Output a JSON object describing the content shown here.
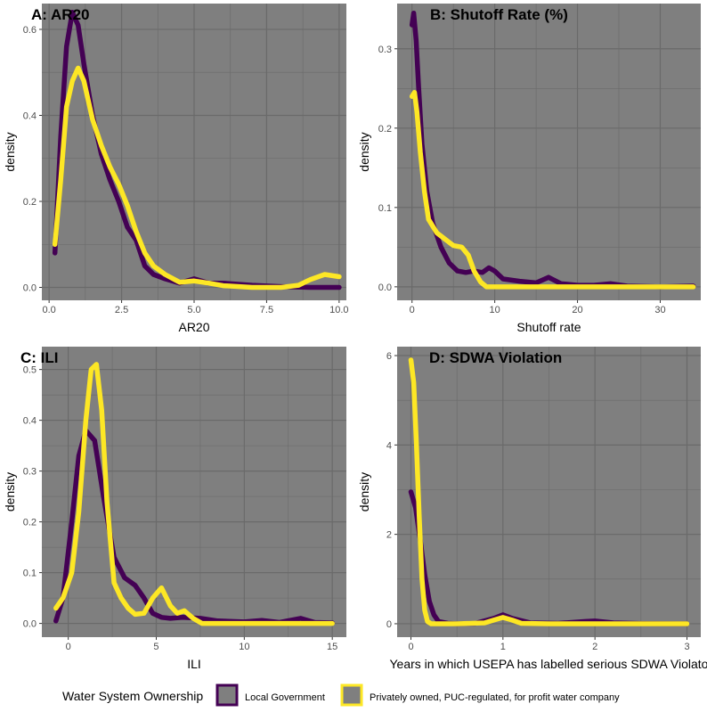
{
  "colors": {
    "panel_bg": "#7f7f7f",
    "grid": "#6a6a6a",
    "local_government": "#440154",
    "private_company": "#fde725"
  },
  "legend": {
    "title": "Water System Ownership",
    "items": [
      {
        "label": "Local Government",
        "color": "#440154"
      },
      {
        "label": "Privately owned, PUC-regulated, for profit water company",
        "color": "#fde725"
      }
    ]
  },
  "chart_data": [
    {
      "type": "line",
      "title": "A: AR20",
      "xlabel": "AR20",
      "ylabel": "density",
      "xlim": [
        -0.25,
        10.25
      ],
      "ylim": [
        -0.03,
        0.66
      ],
      "xticks": [
        0.0,
        2.5,
        5.0,
        7.5,
        10.0
      ],
      "xtick_labels": [
        "0.0",
        "2.5",
        "5.0",
        "7.5",
        "10.0"
      ],
      "yticks": [
        0.0,
        0.2,
        0.4,
        0.6
      ],
      "ytick_labels": [
        "0.0",
        "0.2",
        "0.4",
        "0.6"
      ],
      "grid": true,
      "series": [
        {
          "name": "Local Government",
          "color": "#440154",
          "x": [
            0.2,
            0.4,
            0.6,
            0.8,
            1.0,
            1.2,
            1.5,
            1.8,
            2.1,
            2.4,
            2.7,
            3.0,
            3.3,
            3.6,
            4.0,
            4.5,
            5.0,
            5.5,
            6.0,
            7.0,
            8.0,
            9.0,
            10.0
          ],
          "y": [
            0.08,
            0.35,
            0.56,
            0.64,
            0.61,
            0.52,
            0.4,
            0.31,
            0.25,
            0.2,
            0.14,
            0.11,
            0.05,
            0.03,
            0.02,
            0.01,
            0.02,
            0.01,
            0.01,
            0.005,
            0.002,
            0.0,
            0.0
          ]
        },
        {
          "name": "Privately owned, PUC-regulated, for profit water company",
          "color": "#fde725",
          "x": [
            0.2,
            0.4,
            0.6,
            0.8,
            1.0,
            1.2,
            1.5,
            1.8,
            2.1,
            2.4,
            2.7,
            3.0,
            3.3,
            3.6,
            4.0,
            4.5,
            5.0,
            5.5,
            6.0,
            7.0,
            8.0,
            8.6,
            9.0,
            9.5,
            10.0
          ],
          "y": [
            0.1,
            0.25,
            0.42,
            0.48,
            0.51,
            0.48,
            0.39,
            0.33,
            0.28,
            0.24,
            0.19,
            0.13,
            0.08,
            0.05,
            0.03,
            0.012,
            0.015,
            0.01,
            0.004,
            0.0,
            0.0,
            0.005,
            0.018,
            0.03,
            0.025
          ]
        }
      ]
    },
    {
      "type": "line",
      "title": "B: Shutoff Rate (%)",
      "xlabel": "Shutoff rate",
      "ylabel": "density",
      "xlim": [
        -1.8,
        34.9
      ],
      "ylim": [
        -0.017,
        0.357
      ],
      "xticks": [
        0,
        10,
        20,
        30
      ],
      "xtick_labels": [
        "0",
        "10",
        "20",
        "30"
      ],
      "yticks": [
        0.0,
        0.1,
        0.2,
        0.3
      ],
      "ytick_labels": [
        "0.0",
        "0.1",
        "0.2",
        "0.3"
      ],
      "grid": true,
      "series": [
        {
          "name": "Local Government",
          "color": "#440154",
          "x": [
            0.0,
            0.2,
            0.5,
            0.8,
            1.2,
            1.8,
            2.5,
            3.5,
            4.5,
            5.5,
            6.5,
            7.5,
            8.5,
            9.3,
            10.0,
            11.0,
            13.0,
            15.0,
            16.5,
            18.0,
            20.0,
            22.0,
            24.0,
            26.0,
            30.0,
            34.0
          ],
          "y": [
            0.33,
            0.345,
            0.31,
            0.25,
            0.18,
            0.12,
            0.08,
            0.05,
            0.03,
            0.02,
            0.018,
            0.02,
            0.018,
            0.024,
            0.02,
            0.01,
            0.007,
            0.005,
            0.012,
            0.004,
            0.002,
            0.002,
            0.004,
            0.001,
            0.0,
            0.001
          ]
        },
        {
          "name": "Privately owned, PUC-regulated, for profit water company",
          "color": "#fde725",
          "x": [
            0.0,
            0.3,
            0.6,
            1.0,
            1.5,
            2.0,
            3.0,
            4.0,
            5.0,
            6.0,
            6.8,
            7.5,
            8.3,
            9.0,
            10.0,
            12.0,
            15.0,
            20.0,
            25.0,
            30.0,
            34.0
          ],
          "y": [
            0.24,
            0.245,
            0.22,
            0.17,
            0.12,
            0.085,
            0.068,
            0.06,
            0.052,
            0.05,
            0.04,
            0.02,
            0.006,
            0.0,
            0.0,
            0.0,
            0.0,
            0.0,
            0.0,
            0.0,
            0.0
          ]
        }
      ]
    },
    {
      "type": "line",
      "title": "C: ILI",
      "xlabel": "ILI",
      "ylabel": "density",
      "xlim": [
        -1.5,
        15.8
      ],
      "ylim": [
        -0.027,
        0.545
      ],
      "xticks": [
        0,
        5,
        10,
        15
      ],
      "xtick_labels": [
        "0",
        "5",
        "10",
        "15"
      ],
      "yticks": [
        0.0,
        0.1,
        0.2,
        0.3,
        0.4,
        0.5
      ],
      "ytick_labels": [
        "0.0",
        "0.1",
        "0.2",
        "0.3",
        "0.4",
        "0.5"
      ],
      "grid": true,
      "series": [
        {
          "name": "Local Government",
          "color": "#440154",
          "x": [
            -0.7,
            -0.3,
            0.2,
            0.6,
            1.0,
            1.5,
            2.0,
            2.6,
            3.2,
            3.8,
            4.3,
            4.8,
            5.3,
            5.8,
            6.5,
            7.5,
            8.5,
            10.0,
            11.0,
            12.0,
            13.2,
            14.0,
            15.0
          ],
          "y": [
            0.005,
            0.05,
            0.2,
            0.33,
            0.38,
            0.36,
            0.25,
            0.13,
            0.09,
            0.075,
            0.05,
            0.02,
            0.012,
            0.01,
            0.012,
            0.01,
            0.005,
            0.003,
            0.006,
            0.002,
            0.01,
            0.002,
            0.001
          ]
        },
        {
          "name": "Privately owned, PUC-regulated, for profit water company",
          "color": "#fde725",
          "x": [
            -0.7,
            -0.3,
            0.2,
            0.6,
            1.0,
            1.3,
            1.6,
            1.9,
            2.2,
            2.6,
            3.0,
            3.4,
            3.8,
            4.3,
            4.8,
            5.3,
            5.8,
            6.2,
            6.6,
            7.1,
            7.6,
            8.5,
            10.0,
            12.0,
            15.0
          ],
          "y": [
            0.03,
            0.05,
            0.1,
            0.22,
            0.4,
            0.5,
            0.51,
            0.42,
            0.24,
            0.08,
            0.05,
            0.03,
            0.018,
            0.02,
            0.05,
            0.07,
            0.035,
            0.02,
            0.025,
            0.01,
            0.0,
            0.0,
            0.0,
            0.0,
            0.0
          ]
        }
      ]
    },
    {
      "type": "line",
      "title": "D: SDWA Violation",
      "xlabel": "Years in which USEPA has labelled serious SDWA Violato",
      "ylabel": "density",
      "xlim": [
        -0.15,
        3.15
      ],
      "ylim": [
        -0.3,
        6.2
      ],
      "xticks": [
        0,
        1,
        2,
        3
      ],
      "xtick_labels": [
        "0",
        "1",
        "2",
        "3"
      ],
      "yticks": [
        0,
        2,
        4,
        6
      ],
      "ytick_labels": [
        "0",
        "2",
        "4",
        "6"
      ],
      "grid": true,
      "series": [
        {
          "name": "Local Government",
          "color": "#440154",
          "x": [
            0.0,
            0.05,
            0.1,
            0.15,
            0.2,
            0.25,
            0.3,
            0.4,
            0.5,
            0.7,
            0.9,
            1.0,
            1.1,
            1.3,
            1.6,
            1.9,
            2.0,
            2.2,
            2.5,
            3.0
          ],
          "y": [
            2.95,
            2.6,
            1.9,
            1.1,
            0.5,
            0.2,
            0.05,
            0.01,
            0.0,
            0.01,
            0.12,
            0.2,
            0.12,
            0.02,
            0.01,
            0.05,
            0.06,
            0.02,
            0.005,
            0.0
          ]
        },
        {
          "name": "Privately owned, PUC-regulated, for profit water company",
          "color": "#fde725",
          "x": [
            0.0,
            0.03,
            0.06,
            0.09,
            0.12,
            0.15,
            0.18,
            0.22,
            0.3,
            0.5,
            0.8,
            0.9,
            1.0,
            1.1,
            1.2,
            1.5,
            2.0,
            2.5,
            3.0
          ],
          "y": [
            5.9,
            5.4,
            4.0,
            2.4,
            1.0,
            0.3,
            0.05,
            0.0,
            0.0,
            0.0,
            0.02,
            0.08,
            0.14,
            0.08,
            0.01,
            0.0,
            0.0,
            0.0,
            0.0
          ]
        }
      ]
    }
  ]
}
